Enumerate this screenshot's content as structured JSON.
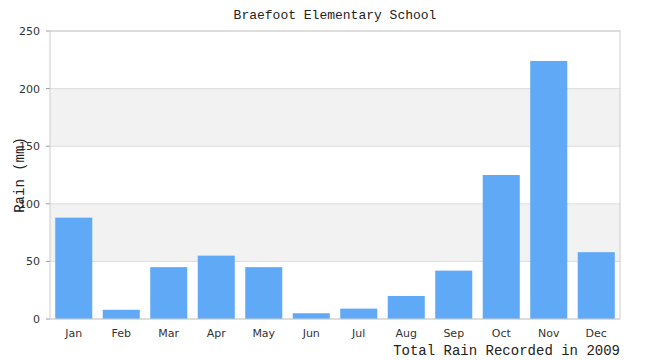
{
  "chart_data": {
    "type": "bar",
    "title": "Braefoot Elementary School",
    "y_label": "Rain (mm)",
    "x_label": "Total Rain Recorded in 2009",
    "categories": [
      "Jan",
      "Feb",
      "Mar",
      "Apr",
      "May",
      "Jun",
      "Jul",
      "Aug",
      "Sep",
      "Oct",
      "Nov",
      "Dec"
    ],
    "values": [
      88,
      8,
      45,
      55,
      45,
      5,
      9,
      20,
      42,
      125,
      224,
      58
    ],
    "color": "#60a9f6",
    "ylim": [
      0,
      250
    ],
    "yticks": [
      0,
      50,
      100,
      150,
      200,
      250
    ],
    "grid": true
  }
}
